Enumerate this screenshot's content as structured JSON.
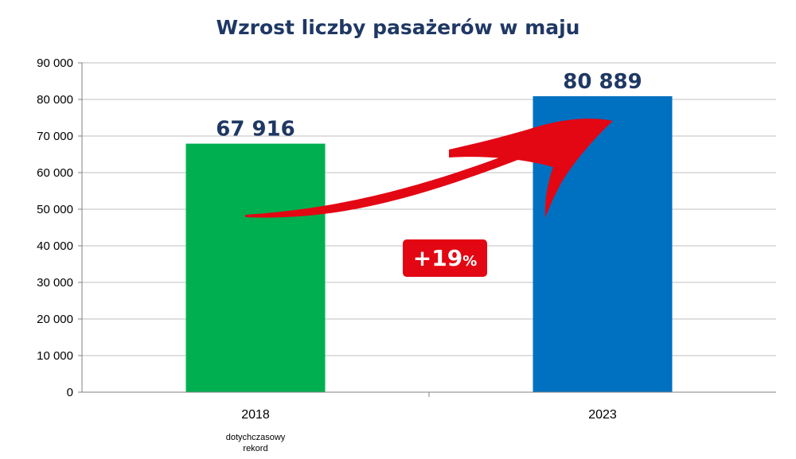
{
  "chart_data": {
    "type": "bar",
    "title": "Wzrost liczby pasażerów w maju",
    "categories": [
      "2018",
      "2023"
    ],
    "values": [
      67916,
      80889
    ],
    "data_labels": [
      "67 916",
      "80 889"
    ],
    "bar_colors": [
      "#00b050",
      "#0070c0"
    ],
    "ylim": [
      0,
      90000
    ],
    "yticks": [
      {
        "v": 0,
        "label": "0"
      },
      {
        "v": 10000,
        "label": "10 000"
      },
      {
        "v": 20000,
        "label": "20 000"
      },
      {
        "v": 30000,
        "label": "30 000"
      },
      {
        "v": 40000,
        "label": "40 000"
      },
      {
        "v": 50000,
        "label": "50 000"
      },
      {
        "v": 60000,
        "label": "60 000"
      },
      {
        "v": 70000,
        "label": "70 000"
      },
      {
        "v": 80000,
        "label": "80 000"
      },
      {
        "v": 90000,
        "label": "90 000"
      }
    ],
    "grid": true,
    "annotations": {
      "category_note": [
        "dotychczasowy",
        "rekord"
      ],
      "growth_badge": {
        "value": "+19",
        "unit": "%",
        "color": "#e30613"
      }
    }
  }
}
